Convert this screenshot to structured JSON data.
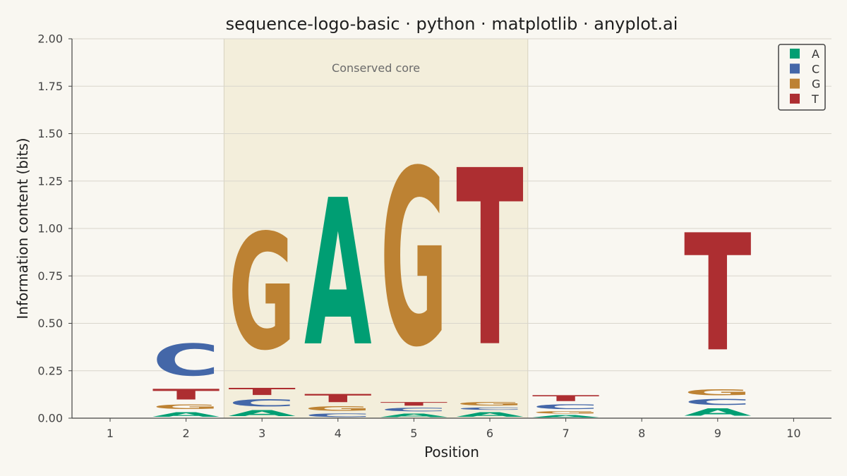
{
  "chart_data": {
    "type": "sequence-logo",
    "title": "sequence-logo-basic · python · matplotlib · anyplot.ai",
    "xlabel": "Position",
    "ylabel": "Information content (bits)",
    "ylim": [
      0,
      2.0
    ],
    "yticks": [
      "0.00",
      "0.25",
      "0.50",
      "0.75",
      "1.00",
      "1.25",
      "1.50",
      "1.75",
      "2.00"
    ],
    "grid": true,
    "legend_position": "top-right",
    "legend": [
      {
        "letter": "A",
        "color": "#009e73"
      },
      {
        "letter": "C",
        "color": "#4467a8"
      },
      {
        "letter": "G",
        "color": "#bd8233"
      },
      {
        "letter": "T",
        "color": "#ad2e31"
      }
    ],
    "highlight_region": {
      "start": 3,
      "end": 6,
      "label": "Conserved core"
    },
    "positions": [
      {
        "position": "1",
        "letters": []
      },
      {
        "position": "2",
        "letters": [
          {
            "letter": "A",
            "height": 0.04
          },
          {
            "letter": "G",
            "height": 0.04
          },
          {
            "letter": "T",
            "height": 0.09
          },
          {
            "letter": "C",
            "height": 0.27
          }
        ]
      },
      {
        "position": "3",
        "letters": [
          {
            "letter": "A",
            "height": 0.05
          },
          {
            "letter": "C",
            "height": 0.06
          },
          {
            "letter": "T",
            "height": 0.06
          },
          {
            "letter": "G",
            "height": 0.98
          }
        ]
      },
      {
        "position": "4",
        "letters": [
          {
            "letter": "C",
            "height": 0.03
          },
          {
            "letter": "G",
            "height": 0.04
          },
          {
            "letter": "T",
            "height": 0.07
          },
          {
            "letter": "A",
            "height": 1.24
          }
        ]
      },
      {
        "position": "5",
        "letters": [
          {
            "letter": "A",
            "height": 0.03
          },
          {
            "letter": "C",
            "height": 0.03
          },
          {
            "letter": "T",
            "height": 0.03
          },
          {
            "letter": "G",
            "height": 1.49
          }
        ]
      },
      {
        "position": "6",
        "letters": [
          {
            "letter": "A",
            "height": 0.04
          },
          {
            "letter": "C",
            "height": 0.02
          },
          {
            "letter": "G",
            "height": 0.03
          },
          {
            "letter": "T",
            "height": 1.49
          }
        ]
      },
      {
        "position": "7",
        "letters": [
          {
            "letter": "A",
            "height": 0.02
          },
          {
            "letter": "G",
            "height": 0.02
          },
          {
            "letter": "C",
            "height": 0.04
          },
          {
            "letter": "T",
            "height": 0.05
          }
        ]
      },
      {
        "position": "8",
        "letters": []
      },
      {
        "position": "9",
        "letters": [
          {
            "letter": "A",
            "height": 0.06
          },
          {
            "letter": "C",
            "height": 0.05
          },
          {
            "letter": "G",
            "height": 0.05
          },
          {
            "letter": "T",
            "height": 0.99
          }
        ]
      },
      {
        "position": "10",
        "letters": []
      }
    ]
  }
}
